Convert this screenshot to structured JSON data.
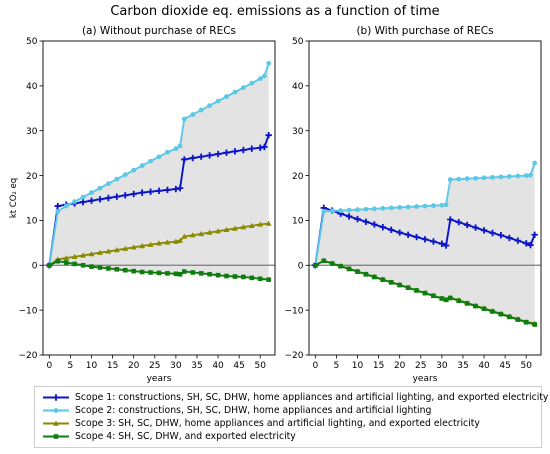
{
  "figure": {
    "title": "Carbon dioxide eq. emissions as a function of time"
  },
  "legend": {
    "items": [
      {
        "label": "Scope 1: constructions, SH, SC, DHW, home appliances and artificial lighting, and exported electricity",
        "color": "#0a14c8",
        "marker": "plus"
      },
      {
        "label": "Scope 2: constructions, SH, SC, DHW, home appliances and artificial lighting",
        "color": "#5bc8e6",
        "marker": "circle"
      },
      {
        "label": "Scope 3: SH, SC, DHW, home appliances and artificial lighting, and exported electricity",
        "color": "#8a8a00",
        "marker": "triangle"
      },
      {
        "label": "Scope 4: SH, SC, DHW, and exported electricity",
        "color": "#0e7d0e",
        "marker": "square"
      }
    ]
  },
  "chart_data": [
    {
      "type": "line",
      "title": "(a) Without purchase of RECs",
      "xlabel": "years",
      "ylabel": "kt CO₂ eq",
      "xlim": [
        -1.5,
        53.5
      ],
      "ylim": [
        -20,
        50
      ],
      "xticks": [
        0,
        5,
        10,
        15,
        20,
        25,
        30,
        35,
        40,
        45,
        50
      ],
      "yticks": [
        -20,
        -10,
        0,
        10,
        20,
        30,
        40,
        50
      ],
      "shaded_between": [
        "Scope 2",
        "Scope 4"
      ],
      "zero_line": true,
      "series": [
        {
          "name": "Scope 1",
          "color": "#0a14c8",
          "marker": "plus",
          "points": [
            [
              0,
              0
            ],
            [
              2,
              13.2
            ],
            [
              4,
              13.5
            ],
            [
              6,
              13.8
            ],
            [
              8,
              14.1
            ],
            [
              10,
              14.4
            ],
            [
              12,
              14.7
            ],
            [
              14,
              15.0
            ],
            [
              16,
              15.3
            ],
            [
              18,
              15.6
            ],
            [
              20,
              15.9
            ],
            [
              22,
              16.2
            ],
            [
              24,
              16.4
            ],
            [
              26,
              16.6
            ],
            [
              28,
              16.8
            ],
            [
              30,
              17.0
            ],
            [
              31,
              17.2
            ],
            [
              32,
              23.6
            ],
            [
              34,
              23.9
            ],
            [
              36,
              24.2
            ],
            [
              38,
              24.5
            ],
            [
              40,
              24.8
            ],
            [
              42,
              25.1
            ],
            [
              44,
              25.4
            ],
            [
              46,
              25.7
            ],
            [
              48,
              26.0
            ],
            [
              50,
              26.2
            ],
            [
              51,
              26.4
            ],
            [
              52,
              29.0
            ]
          ]
        },
        {
          "name": "Scope 2",
          "color": "#5bc8e6",
          "marker": "circle",
          "points": [
            [
              0,
              0
            ],
            [
              2,
              12.0
            ],
            [
              4,
              13.2
            ],
            [
              6,
              14.2
            ],
            [
              8,
              15.2
            ],
            [
              10,
              16.2
            ],
            [
              12,
              17.2
            ],
            [
              14,
              18.2
            ],
            [
              16,
              19.2
            ],
            [
              18,
              20.2
            ],
            [
              20,
              21.2
            ],
            [
              22,
              22.2
            ],
            [
              24,
              23.2
            ],
            [
              26,
              24.2
            ],
            [
              28,
              25.2
            ],
            [
              30,
              26.0
            ],
            [
              31,
              26.6
            ],
            [
              32,
              32.6
            ],
            [
              34,
              33.6
            ],
            [
              36,
              34.6
            ],
            [
              38,
              35.6
            ],
            [
              40,
              36.6
            ],
            [
              42,
              37.6
            ],
            [
              44,
              38.6
            ],
            [
              46,
              39.6
            ],
            [
              48,
              40.6
            ],
            [
              50,
              41.6
            ],
            [
              51,
              42.2
            ],
            [
              52,
              45.0
            ]
          ]
        },
        {
          "name": "Scope 3",
          "color": "#8a8a00",
          "marker": "triangle",
          "points": [
            [
              0,
              0
            ],
            [
              2,
              1.3
            ],
            [
              4,
              1.6
            ],
            [
              6,
              1.9
            ],
            [
              8,
              2.2
            ],
            [
              10,
              2.5
            ],
            [
              12,
              2.8
            ],
            [
              14,
              3.1
            ],
            [
              16,
              3.4
            ],
            [
              18,
              3.7
            ],
            [
              20,
              4.0
            ],
            [
              22,
              4.3
            ],
            [
              24,
              4.6
            ],
            [
              26,
              4.9
            ],
            [
              28,
              5.1
            ],
            [
              30,
              5.3
            ],
            [
              31,
              5.5
            ],
            [
              32,
              6.4
            ],
            [
              34,
              6.7
            ],
            [
              36,
              7.0
            ],
            [
              38,
              7.3
            ],
            [
              40,
              7.6
            ],
            [
              42,
              7.9
            ],
            [
              44,
              8.2
            ],
            [
              46,
              8.5
            ],
            [
              48,
              8.8
            ],
            [
              50,
              9.1
            ],
            [
              52,
              9.3
            ]
          ]
        },
        {
          "name": "Scope 4",
          "color": "#0e7d0e",
          "marker": "square",
          "points": [
            [
              0,
              0
            ],
            [
              2,
              0.9
            ],
            [
              4,
              0.6
            ],
            [
              6,
              0.3
            ],
            [
              8,
              0.0
            ],
            [
              10,
              -0.3
            ],
            [
              12,
              -0.5
            ],
            [
              14,
              -0.7
            ],
            [
              16,
              -0.9
            ],
            [
              18,
              -1.1
            ],
            [
              20,
              -1.3
            ],
            [
              22,
              -1.5
            ],
            [
              24,
              -1.6
            ],
            [
              26,
              -1.7
            ],
            [
              28,
              -1.8
            ],
            [
              30,
              -1.9
            ],
            [
              31,
              -2.0
            ],
            [
              32,
              -1.4
            ],
            [
              34,
              -1.6
            ],
            [
              36,
              -1.8
            ],
            [
              38,
              -2.0
            ],
            [
              40,
              -2.2
            ],
            [
              42,
              -2.4
            ],
            [
              44,
              -2.5
            ],
            [
              46,
              -2.6
            ],
            [
              48,
              -2.8
            ],
            [
              50,
              -3.0
            ],
            [
              52,
              -3.2
            ]
          ]
        }
      ]
    },
    {
      "type": "line",
      "title": "(b) With purchase of RECs",
      "xlabel": "years",
      "ylabel": "",
      "xlim": [
        -1.5,
        53.5
      ],
      "ylim": [
        -20,
        50
      ],
      "xticks": [
        0,
        5,
        10,
        15,
        20,
        25,
        30,
        35,
        40,
        45,
        50
      ],
      "yticks": [
        -20,
        -10,
        0,
        10,
        20,
        30,
        40,
        50
      ],
      "shaded_between": [
        "Scope 2",
        "Scope 4"
      ],
      "zero_line": true,
      "series": [
        {
          "name": "Scope 1",
          "color": "#0a14c8",
          "marker": "plus",
          "points": [
            [
              0,
              0
            ],
            [
              2,
              12.8
            ],
            [
              4,
              12.2
            ],
            [
              6,
              11.5
            ],
            [
              8,
              10.9
            ],
            [
              10,
              10.3
            ],
            [
              12,
              9.7
            ],
            [
              14,
              9.1
            ],
            [
              16,
              8.5
            ],
            [
              18,
              7.9
            ],
            [
              20,
              7.3
            ],
            [
              22,
              6.8
            ],
            [
              24,
              6.3
            ],
            [
              26,
              5.8
            ],
            [
              28,
              5.3
            ],
            [
              30,
              4.8
            ],
            [
              31,
              4.4
            ],
            [
              32,
              10.2
            ],
            [
              34,
              9.6
            ],
            [
              36,
              9.0
            ],
            [
              38,
              8.4
            ],
            [
              40,
              7.8
            ],
            [
              42,
              7.2
            ],
            [
              44,
              6.7
            ],
            [
              46,
              6.1
            ],
            [
              48,
              5.5
            ],
            [
              50,
              4.9
            ],
            [
              51,
              4.5
            ],
            [
              52,
              6.8
            ]
          ]
        },
        {
          "name": "Scope 2",
          "color": "#5bc8e6",
          "marker": "circle",
          "points": [
            [
              0,
              0
            ],
            [
              2,
              12.0
            ],
            [
              4,
              12.1
            ],
            [
              6,
              12.2
            ],
            [
              8,
              12.3
            ],
            [
              10,
              12.4
            ],
            [
              12,
              12.5
            ],
            [
              14,
              12.6
            ],
            [
              16,
              12.7
            ],
            [
              18,
              12.8
            ],
            [
              20,
              12.9
            ],
            [
              22,
              13.0
            ],
            [
              24,
              13.1
            ],
            [
              26,
              13.2
            ],
            [
              28,
              13.3
            ],
            [
              30,
              13.4
            ],
            [
              31,
              13.5
            ],
            [
              32,
              19.1
            ],
            [
              34,
              19.2
            ],
            [
              36,
              19.3
            ],
            [
              38,
              19.4
            ],
            [
              40,
              19.5
            ],
            [
              42,
              19.6
            ],
            [
              44,
              19.7
            ],
            [
              46,
              19.8
            ],
            [
              48,
              19.9
            ],
            [
              50,
              20.0
            ],
            [
              51,
              20.1
            ],
            [
              52,
              22.8
            ]
          ]
        },
        {
          "name": "Scope 3",
          "color": "#8a8a00",
          "marker": "triangle",
          "points": [
            [
              0,
              0
            ],
            [
              2,
              1.0
            ],
            [
              4,
              0.4
            ],
            [
              6,
              -0.2
            ],
            [
              8,
              -0.8
            ],
            [
              10,
              -1.4
            ],
            [
              12,
              -2.0
            ],
            [
              14,
              -2.6
            ],
            [
              16,
              -3.2
            ],
            [
              18,
              -3.8
            ],
            [
              20,
              -4.4
            ],
            [
              22,
              -5.0
            ],
            [
              24,
              -5.6
            ],
            [
              26,
              -6.2
            ],
            [
              28,
              -6.8
            ],
            [
              30,
              -7.4
            ],
            [
              31,
              -7.7
            ],
            [
              32,
              -7.2
            ],
            [
              34,
              -7.8
            ],
            [
              36,
              -8.4
            ],
            [
              38,
              -9.0
            ],
            [
              40,
              -9.6
            ],
            [
              42,
              -10.2
            ],
            [
              44,
              -10.8
            ],
            [
              46,
              -11.4
            ],
            [
              48,
              -12.0
            ],
            [
              50,
              -12.6
            ],
            [
              52,
              -13.0
            ]
          ]
        },
        {
          "name": "Scope 4",
          "color": "#0e7d0e",
          "marker": "square",
          "points": [
            [
              0,
              0
            ],
            [
              2,
              1.0
            ],
            [
              4,
              0.4
            ],
            [
              6,
              -0.2
            ],
            [
              8,
              -0.8
            ],
            [
              10,
              -1.4
            ],
            [
              12,
              -2.0
            ],
            [
              14,
              -2.6
            ],
            [
              16,
              -3.2
            ],
            [
              18,
              -3.8
            ],
            [
              20,
              -4.4
            ],
            [
              22,
              -5.0
            ],
            [
              24,
              -5.6
            ],
            [
              26,
              -6.2
            ],
            [
              28,
              -6.8
            ],
            [
              30,
              -7.4
            ],
            [
              31,
              -7.7
            ],
            [
              32,
              -7.3
            ],
            [
              34,
              -7.9
            ],
            [
              36,
              -8.5
            ],
            [
              38,
              -9.1
            ],
            [
              40,
              -9.7
            ],
            [
              42,
              -10.3
            ],
            [
              44,
              -10.9
            ],
            [
              46,
              -11.5
            ],
            [
              48,
              -12.1
            ],
            [
              50,
              -12.7
            ],
            [
              52,
              -13.2
            ]
          ]
        }
      ]
    }
  ]
}
